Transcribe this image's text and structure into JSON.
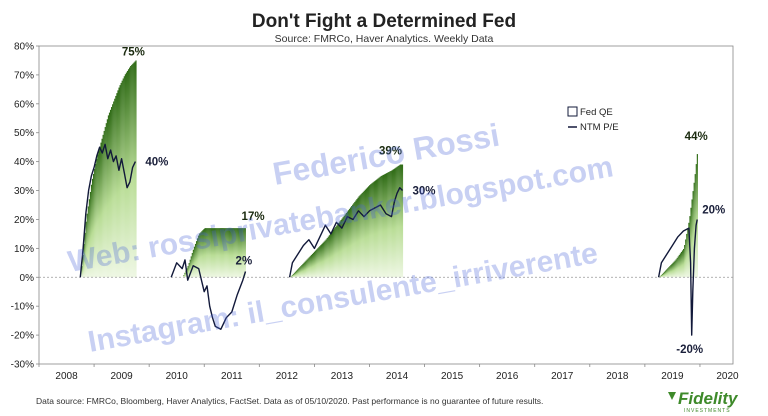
{
  "chart_data": {
    "type": "area",
    "title": "Don't Fight a Determined Fed",
    "subtitle": "Source: FMRCo, Haver Analytics. Weekly Data",
    "xlim": [
      2008,
      2020.6
    ],
    "ylim": [
      -30,
      80
    ],
    "x_ticks": [
      "2008",
      "2009",
      "2010",
      "2011",
      "2012",
      "2013",
      "2014",
      "2015",
      "2016",
      "2017",
      "2018",
      "2019",
      "2020"
    ],
    "y_ticks": [
      "80%",
      "70%",
      "60%",
      "50%",
      "40%",
      "30%",
      "20%",
      "10%",
      "0%",
      "-10%",
      "-20%",
      "-30%"
    ],
    "legend": {
      "placement": "right",
      "entries": [
        "Fed QE",
        "NTM P/E"
      ]
    },
    "series": [
      {
        "name": "Fed QE",
        "style": "green gradient bars",
        "episodes": [
          {
            "x": [
              2008.75,
              2008.85,
              2008.95,
              2009.05,
              2009.15,
              2009.25,
              2009.35,
              2009.45,
              2009.55,
              2009.65,
              2009.75
            ],
            "y": [
              0,
              20,
              33,
              42,
              49,
              56,
              61,
              66,
              70,
              73,
              75
            ]
          },
          {
            "x": [
              2010.6,
              2010.7,
              2010.8,
              2010.9,
              2011.0,
              2011.2,
              2011.4,
              2011.6,
              2011.75
            ],
            "y": [
              0,
              4,
              10,
              15,
              17,
              17,
              17,
              17,
              17
            ]
          },
          {
            "x": [
              2012.55,
              2012.7,
              2012.85,
              2013.0,
              2013.2,
              2013.4,
              2013.6,
              2013.8,
              2014.0,
              2014.2,
              2014.4,
              2014.55,
              2014.6
            ],
            "y": [
              0,
              3,
              6,
              9,
              13,
              18,
              23,
              28,
              32,
              35,
              37,
              39,
              39
            ]
          },
          {
            "x": [
              2019.25,
              2019.4,
              2019.55,
              2019.7,
              2019.8,
              2019.9,
              2019.95
            ],
            "y": [
              0,
              3,
              6,
              10,
              20,
              35,
              44
            ]
          }
        ]
      },
      {
        "name": "NTM P/E",
        "style": "dark navy line",
        "episodes": [
          {
            "x": [
              2008.75,
              2008.8,
              2008.85,
              2008.9,
              2008.95,
              2009.0,
              2009.05,
              2009.1,
              2009.15,
              2009.2,
              2009.25,
              2009.3,
              2009.35,
              2009.4,
              2009.45,
              2009.5,
              2009.55,
              2009.6,
              2009.65,
              2009.7,
              2009.75
            ],
            "y": [
              0,
              10,
              22,
              30,
              35,
              38,
              42,
              45,
              43,
              46,
              41,
              44,
              40,
              42,
              37,
              41,
              36,
              31,
              33,
              38,
              40
            ]
          },
          {
            "x": [
              2010.4,
              2010.5,
              2010.6,
              2010.65,
              2010.7,
              2010.8,
              2010.9,
              2011.0,
              2011.05,
              2011.1,
              2011.15,
              2011.2,
              2011.3,
              2011.4,
              2011.5,
              2011.6,
              2011.7,
              2011.75
            ],
            "y": [
              0,
              5,
              3,
              6,
              -1,
              4,
              3,
              -5,
              -3,
              -10,
              -14,
              -17,
              -18,
              -14,
              -12,
              -6,
              -1,
              2
            ]
          },
          {
            "x": [
              2012.55,
              2012.6,
              2012.7,
              2012.8,
              2012.9,
              2013.0,
              2013.1,
              2013.2,
              2013.3,
              2013.4,
              2013.5,
              2013.6,
              2013.7,
              2013.8,
              2013.9,
              2014.0,
              2014.1,
              2014.2,
              2014.3,
              2014.4,
              2014.45,
              2014.5,
              2014.55,
              2014.6
            ],
            "y": [
              0,
              5,
              8,
              11,
              13,
              10,
              14,
              18,
              15,
              19,
              17,
              21,
              20,
              23,
              21,
              23,
              24,
              25,
              22,
              21,
              26,
              29,
              31,
              30
            ]
          },
          {
            "x": [
              2019.25,
              2019.3,
              2019.4,
              2019.5,
              2019.6,
              2019.7,
              2019.8,
              2019.83,
              2019.85,
              2019.87,
              2019.9,
              2019.93,
              2019.95
            ],
            "y": [
              0,
              5,
              8,
              11,
              14,
              16,
              17,
              5,
              -20,
              -5,
              10,
              18,
              20
            ]
          }
        ]
      }
    ],
    "annotations": [
      {
        "text": "75%",
        "x": 2009.75,
        "y": 75,
        "series": "Fed QE"
      },
      {
        "text": "40%",
        "x": 2009.75,
        "y": 40,
        "series": "NTM P/E"
      },
      {
        "text": "17%",
        "x": 2011.75,
        "y": 17,
        "series": "Fed QE"
      },
      {
        "text": "2%",
        "x": 2011.75,
        "y": 2,
        "series": "NTM P/E"
      },
      {
        "text": "39%",
        "x": 2014.6,
        "y": 39,
        "series": "Fed QE"
      },
      {
        "text": "30%",
        "x": 2014.6,
        "y": 30,
        "series": "NTM P/E"
      },
      {
        "text": "44%",
        "x": 2019.95,
        "y": 44,
        "series": "Fed QE"
      },
      {
        "text": "20%",
        "x": 2019.95,
        "y": 20,
        "series": "NTM P/E"
      },
      {
        "text": "-20%",
        "x": 2019.85,
        "y": -20,
        "series": "NTM P/E"
      }
    ],
    "zero_line": "dotted",
    "colors": {
      "qe_dark": "#2f6b16",
      "qe_light": "#dff0cc",
      "pe_line": "#12193a"
    }
  },
  "footer": {
    "source_note": "Data source: FMRCo, Bloomberg, Haver Analytics, FactSet. Data as of 05/10/2020. Past performance is no guarantee of future results.",
    "logo_text": "Fidelity",
    "logo_sub": "INVESTMENTS"
  },
  "watermark": {
    "line1": "Federico Rossi",
    "line2": "Web: rossiprivatebanker.blogspot.com",
    "line3": "Instagram: il_consulente_irriverente"
  }
}
